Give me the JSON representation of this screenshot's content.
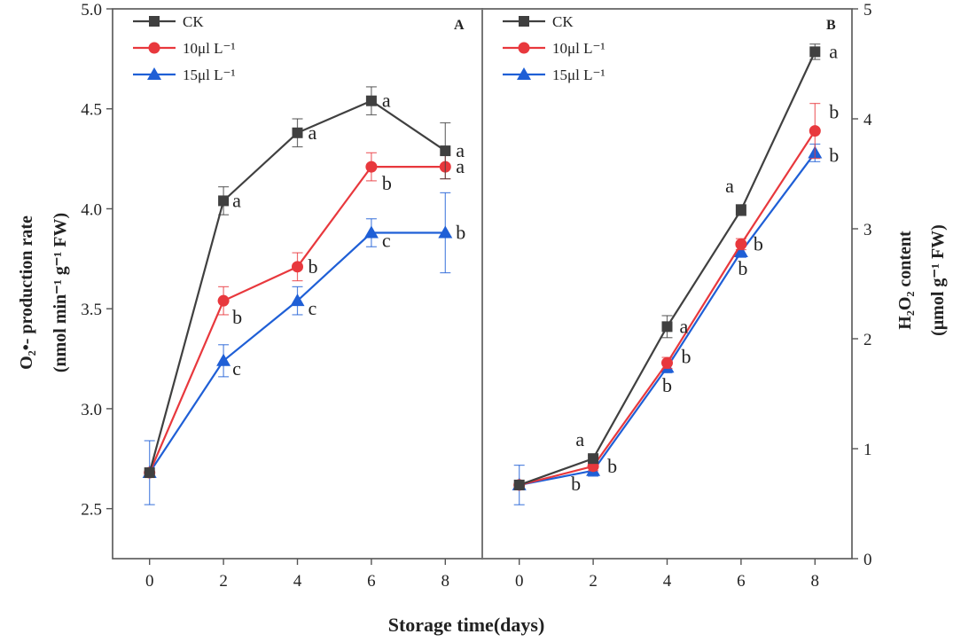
{
  "xlabel": "Storage time(days)",
  "chart_data": [
    {
      "type": "line",
      "panel": "A",
      "title": "",
      "x": [
        0,
        2,
        4,
        6,
        8
      ],
      "xticks": [
        "0",
        "2",
        "4",
        "6",
        "8"
      ],
      "xlim": [
        -1,
        9
      ],
      "ylim": [
        2.25,
        5.0
      ],
      "yticks": [
        "2.5",
        "3.0",
        "3.5",
        "4.0",
        "4.5",
        "5.0"
      ],
      "ylabel_main": "O₂•- production rate",
      "ylabel_unit": "(nmol min⁻¹ g⁻¹ FW)",
      "legend_position": "top-left",
      "series": [
        {
          "name": "CK",
          "color": "#404040",
          "marker": "square",
          "values": [
            2.68,
            4.04,
            4.38,
            4.54,
            4.29
          ],
          "errors": [
            0.0,
            0.07,
            0.07,
            0.07,
            0.14
          ],
          "letters": [
            "",
            "a",
            "a",
            "a",
            "a"
          ]
        },
        {
          "name": "10μl L⁻¹",
          "color": "#e8383d",
          "marker": "circle",
          "values": [
            2.68,
            3.54,
            3.71,
            4.21,
            4.21
          ],
          "errors": [
            0.0,
            0.07,
            0.07,
            0.07,
            0.06
          ],
          "letters": [
            "",
            "b",
            "b",
            "b",
            "a"
          ]
        },
        {
          "name": "15μl L⁻¹",
          "color": "#1f5fd6",
          "marker": "triangle",
          "values": [
            2.68,
            3.24,
            3.54,
            3.88,
            3.88
          ],
          "errors": [
            0.16,
            0.08,
            0.07,
            0.07,
            0.2
          ],
          "letters": [
            "",
            "c",
            "c",
            "c",
            "b"
          ]
        }
      ]
    },
    {
      "type": "line",
      "panel": "B",
      "title": "",
      "x": [
        0,
        2,
        4,
        6,
        8
      ],
      "xticks": [
        "0",
        "2",
        "4",
        "6",
        "8"
      ],
      "xlim": [
        -1,
        9
      ],
      "ylim": [
        0,
        5
      ],
      "yticks": [
        "0",
        "1",
        "2",
        "3",
        "4",
        "5"
      ],
      "ylabel_main": "H₂O₂ content",
      "ylabel_unit": "(μmol g⁻¹ FW)",
      "legend_position": "top-left",
      "series": [
        {
          "name": "CK",
          "color": "#404040",
          "marker": "square",
          "values": [
            0.67,
            0.91,
            2.11,
            3.17,
            4.61
          ],
          "errors": [
            0.0,
            0.03,
            0.1,
            0.05,
            0.07
          ],
          "letters": [
            "",
            "a",
            "a",
            "a",
            "a"
          ]
        },
        {
          "name": "10μl L⁻¹",
          "color": "#e8383d",
          "marker": "circle",
          "values": [
            0.67,
            0.84,
            1.78,
            2.86,
            3.89
          ],
          "errors": [
            0.0,
            0.04,
            0.05,
            0.05,
            0.25
          ],
          "letters": [
            "",
            "b",
            "b",
            "b",
            "b"
          ]
        },
        {
          "name": "15μl L⁻¹",
          "color": "#1f5fd6",
          "marker": "triangle",
          "values": [
            0.67,
            0.8,
            1.74,
            2.79,
            3.69
          ],
          "errors": [
            0.18,
            0.05,
            0.05,
            0.05,
            0.08
          ],
          "letters": [
            "",
            "b",
            "b",
            "b",
            "b"
          ]
        }
      ]
    }
  ]
}
